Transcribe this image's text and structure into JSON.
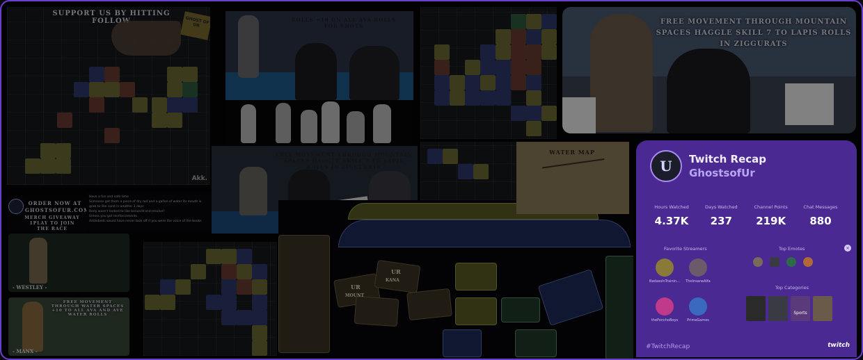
{
  "tiles": {
    "top_left": {
      "banner": "SUPPORT US BY HITTING FOLLOW",
      "sticky_note": "GHOST OF UR",
      "corner_text": "Akk."
    },
    "middle_top": {
      "banner": "ROLLS +10 ON ALL AVA ROLLS FOR SHOTS"
    },
    "middle_bottom": {
      "banner": "FREE MOVEMENT THROUGH MOUNTAIN SPACES HAGGLE SKILL 7 TO LAPIS ROLLS IN ZIGGURATS"
    },
    "top_right": {
      "banner": "FREE MOVEMENT THROUGH MOUNTAIN SPACES HAGGLE SKILL 7 TO LAPIS ROLLS IN ZIGGURATS"
    },
    "water_map": {
      "title": "WATER MAP"
    },
    "order_panel": {
      "line1": "ORDER NOW AT",
      "line2": "GHOSTSOFUR.COM",
      "line3": "MERCH GIVEAWAY",
      "line4": "1PLAY TO JOIN",
      "line5": "THE RACE"
    },
    "character1": {
      "name": "- WESTLEY -"
    },
    "character2": {
      "banner": "FREE MOVEMENT THROUGH WATER SPACES +10 TO ALL AVA AND AVE WATER ROLLS",
      "name": "- MANX -"
    },
    "cards": {
      "ur_label": "UR",
      "ur_sub": "MOUNT",
      "ur_sub2": "KANA"
    }
  },
  "chat": [
    "Have a fun and safe time",
    "Someone get them a piece of dry rod and a gallon of water its mouth is grab to like sand in another 3 days",
    "Body wasn't looked to like bonus/drand resolve?",
    "Unless you got reinforcements",
    "Addiebeds would have never took off if you were the voice of the books"
  ],
  "recap": {
    "title": "Twitch Recap",
    "channel": "GhostsofUr",
    "avatar_glyph": "U",
    "stats": [
      {
        "label": "Hours Watched",
        "value": "4.37K"
      },
      {
        "label": "Days Watched",
        "value": "237"
      },
      {
        "label": "Channel Points",
        "value": "219K"
      },
      {
        "label": "Chat Messages",
        "value": "880"
      }
    ],
    "favorite_streamers_label": "Favorite Streamers",
    "top_emotes_label": "Top Emotes",
    "top_categories_label": "Top Categories",
    "streamers": [
      {
        "name": "BadassInTrainin...",
        "color": "#8a7a3a"
      },
      {
        "name": "TheInsaneAlfa",
        "color": "#6a5a6a"
      },
      {
        "name": "thePonchoBoys",
        "color": "#c0398a"
      },
      {
        "name": "PrimeGames",
        "color": "#3a6ac0"
      }
    ],
    "categories": [
      {
        "label": "",
        "color": "#2a2a2a"
      },
      {
        "label": "",
        "color": "#3a3a44"
      },
      {
        "label": "Sports",
        "color": "#5a3a7a"
      },
      {
        "label": "",
        "color": "#6a5a4a"
      }
    ],
    "hashtag": "#TwitchRecap",
    "brand": "twitch",
    "close_glyph": "×"
  },
  "colors": {
    "accent": "#6a3fd0",
    "recap_bg": "#4a2a92"
  }
}
